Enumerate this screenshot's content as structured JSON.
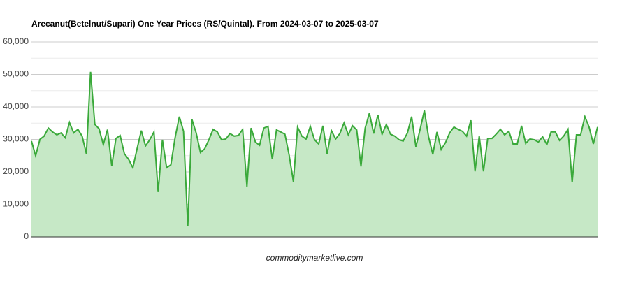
{
  "chart_data": {
    "type": "area",
    "title": "Arecanut(Betelnut/Supari) One Year Prices (RS/Quintal). From 2024-03-07 to 2025-03-07",
    "footer": "commoditymarketlive.com",
    "color": "#3aa93a",
    "fill_color": "#c6e8c6",
    "ylim": [
      0,
      60000
    ],
    "yticks": [
      {
        "value": 0,
        "label": "0"
      },
      {
        "value": 10000,
        "label": "10,000"
      },
      {
        "value": 20000,
        "label": "20,000"
      },
      {
        "value": 30000,
        "label": "30,000"
      },
      {
        "value": 40000,
        "label": "40,000"
      },
      {
        "value": 50000,
        "label": "50,000"
      },
      {
        "value": 60000,
        "label": "60,000"
      }
    ],
    "minor_gridlines": [
      5000,
      15000,
      25000,
      35000,
      45000,
      55000
    ],
    "grid": true,
    "values": [
      29500,
      25000,
      30000,
      31000,
      33500,
      32300,
      31400,
      32000,
      30500,
      35200,
      32000,
      33100,
      31000,
      25600,
      50800,
      34600,
      33300,
      28400,
      33000,
      21900,
      30300,
      31200,
      25600,
      23900,
      21300,
      27100,
      32700,
      28000,
      29900,
      32300,
      13800,
      29900,
      21300,
      22200,
      30500,
      37000,
      32500,
      3400,
      36100,
      32000,
      26000,
      27100,
      29900,
      33100,
      32300,
      29900,
      30100,
      31800,
      31000,
      31200,
      33100,
      15500,
      33500,
      29200,
      28200,
      33500,
      34000,
      23900,
      32900,
      32300,
      31600,
      25200,
      17000,
      33800,
      31000,
      30100,
      34000,
      29900,
      28600,
      34200,
      25600,
      32700,
      30100,
      31800,
      35100,
      31400,
      34200,
      32900,
      21700,
      33500,
      38100,
      31800,
      37600,
      31600,
      34600,
      31600,
      31000,
      29900,
      29500,
      32000,
      37000,
      27700,
      33100,
      38900,
      30800,
      25400,
      32300,
      26900,
      29000,
      32000,
      33800,
      33100,
      32500,
      31000,
      35900,
      20200,
      31000,
      20200,
      30300,
      30300,
      31600,
      33100,
      31400,
      32500,
      28600,
      28600,
      34200,
      28800,
      30100,
      29900,
      29200,
      30800,
      28400,
      32300,
      32300,
      29700,
      31000,
      33100,
      16800,
      31400,
      31400,
      37000,
      33800,
      28600,
      33800
    ]
  }
}
